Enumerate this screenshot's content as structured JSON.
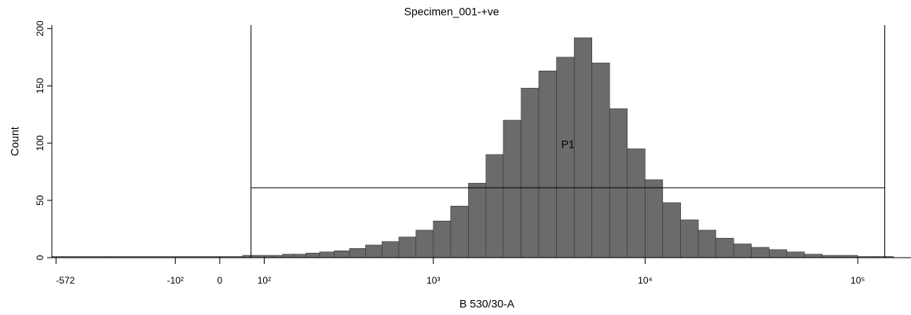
{
  "chart_data": {
    "type": "histogram",
    "title": "Specimen_001-+ve",
    "x_label": "B 530/30-A",
    "y_label": "Count",
    "xscale": "biexponential",
    "color": "#6b6b6b",
    "bins": [
      -600,
      -300,
      0,
      50,
      100,
      121,
      147,
      178,
      215,
      261,
      316,
      383,
      464,
      562,
      681,
      825,
      1000,
      1210,
      1470,
      1780,
      2150,
      2610,
      3160,
      3830,
      4640,
      5620,
      6810,
      8250,
      10000,
      12100,
      14700,
      17800,
      21500,
      26100,
      31600,
      38300,
      46400,
      56200,
      68100,
      82500,
      100000,
      121000,
      147000,
      178000
    ],
    "values": [
      1,
      1,
      1,
      2,
      2,
      2,
      3,
      3,
      4,
      5,
      6,
      8,
      11,
      14,
      18,
      24,
      32,
      45,
      65,
      90,
      120,
      148,
      163,
      175,
      192,
      170,
      130,
      95,
      68,
      48,
      33,
      24,
      17,
      12,
      9,
      7,
      5,
      3,
      2,
      2,
      1,
      1,
      0
    ],
    "xlim": [
      -600,
      178000
    ],
    "ylim": [
      0,
      203
    ],
    "xticks": [
      {
        "value": -572,
        "label": "-572"
      },
      {
        "value": -100,
        "label": "-10²"
      },
      0,
      {
        "value": 100,
        "label": "10²"
      },
      {
        "value": 1000,
        "label": "10³"
      },
      {
        "value": 10000,
        "label": "10⁴"
      },
      {
        "value": 100000,
        "label": "10⁵"
      }
    ],
    "yticks": [
      0,
      50,
      100,
      150,
      200
    ],
    "gates": [
      {
        "name": "P1",
        "range": [
          69,
          134000
        ],
        "level": 61
      }
    ]
  }
}
